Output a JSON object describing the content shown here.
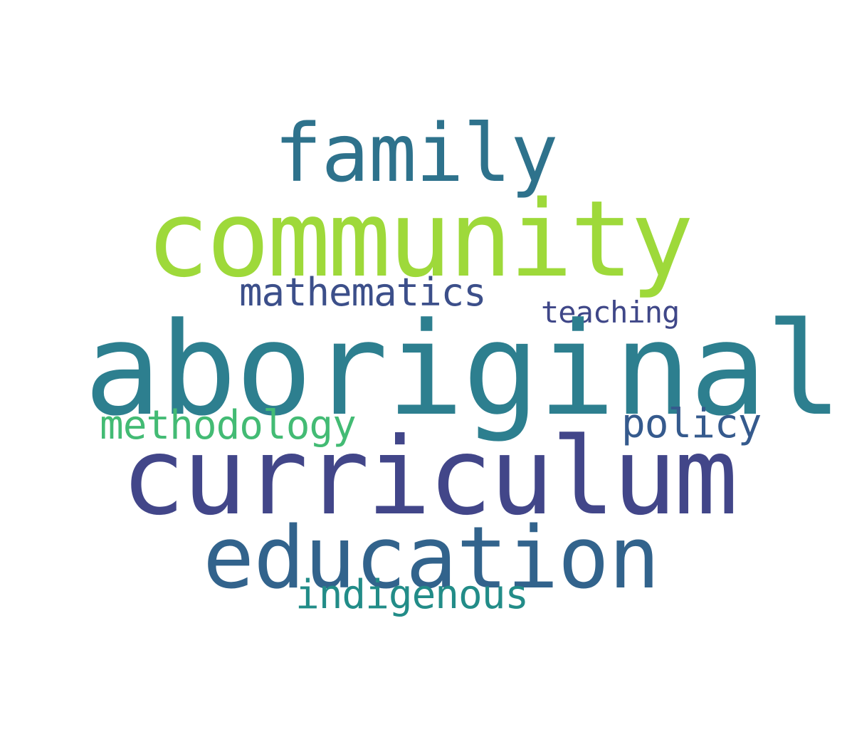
{
  "words": [
    {
      "id": "aboriginal",
      "text": "aboriginal",
      "color": "#2d7f8f"
    },
    {
      "id": "curriculum",
      "text": "curriculum",
      "color": "#424689"
    },
    {
      "id": "community",
      "text": "community",
      "color": "#9ed93a"
    },
    {
      "id": "education",
      "text": "education",
      "color": "#32638c"
    },
    {
      "id": "family",
      "text": "family",
      "color": "#2e728c"
    },
    {
      "id": "indigenous",
      "text": "indigenous",
      "color": "#228c88"
    },
    {
      "id": "methodology",
      "text": "methodology",
      "color": "#43bb74"
    },
    {
      "id": "mathematics",
      "text": "mathematics",
      "color": "#3c4f8a"
    },
    {
      "id": "policy",
      "text": "policy",
      "color": "#355a8d"
    },
    {
      "id": "teaching",
      "text": "teaching",
      "color": "#3f4788"
    }
  ]
}
